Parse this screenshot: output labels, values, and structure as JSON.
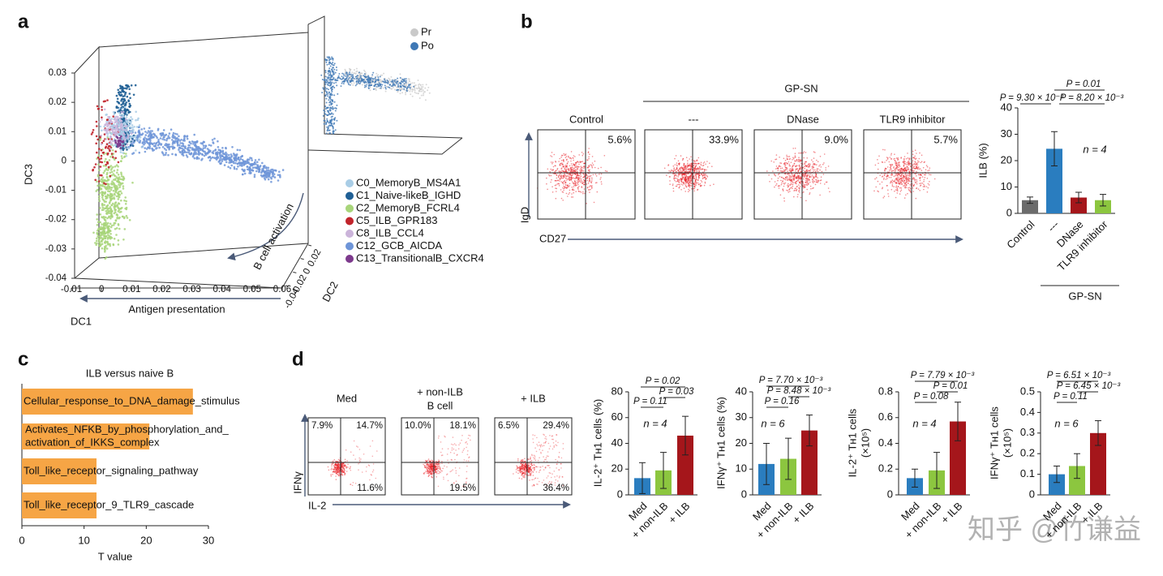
{
  "panel_letters": [
    "a",
    "b",
    "c",
    "d"
  ],
  "watermark": "知乎 @竹谦益",
  "panel_a": {
    "x_label": "DC1",
    "x_caption": "Antigen presentation",
    "y_label": "DC3",
    "z_label": "DC2",
    "arrow_label": "B cell activation",
    "xticks": [
      -0.01,
      0,
      0.01,
      0.02,
      0.03,
      0.04,
      0.05,
      0.06
    ],
    "yticks": [
      -0.04,
      -0.03,
      -0.02,
      -0.01,
      0,
      0.01,
      0.02,
      0.03
    ],
    "zticks": [
      -0.04,
      -0.02,
      0,
      0.02
    ],
    "legend": [
      {
        "name": "C0_MemoryB_MS4A1",
        "color": "#a9cde6"
      },
      {
        "name": "C1_Naive-likeB_IGHD",
        "color": "#1f5f95"
      },
      {
        "name": "C2_MemoryB_FCRL4",
        "color": "#a8d57a"
      },
      {
        "name": "C5_ILB_GPR183",
        "color": "#c1242b"
      },
      {
        "name": "C8_ILB_CCL4",
        "color": "#cbb4da"
      },
      {
        "name": "C12_GCB_AICDA",
        "color": "#6e95d8"
      },
      {
        "name": "C13_TransitionalB_CXCR4",
        "color": "#7d3a8d"
      }
    ],
    "inset_legend": [
      {
        "name": "Pr",
        "color": "#c9c9c9"
      },
      {
        "name": "Po",
        "color": "#3f78b5"
      }
    ]
  },
  "panel_b_flow": {
    "group_label": "GP-SN",
    "x_label": "CD27",
    "y_label": "IgD",
    "plots": [
      {
        "title": "Control",
        "percent": "5.6%"
      },
      {
        "title": "---",
        "percent": "33.9%"
      },
      {
        "title": "DNase",
        "percent": "9.0%"
      },
      {
        "title": "TLR9 inhibitor",
        "percent": "5.7%"
      }
    ]
  },
  "panel_d_flow": {
    "x_label": "IL-2",
    "y_label": "IFNγ",
    "plots": [
      {
        "title": [
          "Med"
        ],
        "percents": [
          "7.9%",
          "14.7%",
          "11.6%"
        ]
      },
      {
        "title": [
          "+ non-ILB",
          "B cell"
        ],
        "percents": [
          "10.0%",
          "18.1%",
          "19.5%"
        ]
      },
      {
        "title": [
          "+ ILB"
        ],
        "percents": [
          "6.5%",
          "29.4%",
          "36.4%"
        ]
      }
    ]
  },
  "chart_data": [
    {
      "type": "bar",
      "ylabel": [
        "ILB (%)"
      ],
      "categories": [
        "Control",
        "---",
        "DNase",
        "TLR9 inhibitor"
      ],
      "values": [
        5,
        24.5,
        6,
        5
      ],
      "errors": [
        1.2,
        6.5,
        2,
        2.2
      ],
      "colors": [
        "#6b6b6b",
        "#2a7dbf",
        "#a5161b",
        "#8cc63f"
      ],
      "ylim": [
        0,
        40
      ],
      "yticks": [
        0,
        10,
        20,
        30,
        40
      ],
      "annotations": [
        "P = 9.30 × 10⁻³",
        "P = 0.01",
        "P = 8.20 × 10⁻³"
      ],
      "n_label": "n = 4",
      "group_label": "GP-SN"
    },
    {
      "type": "barh",
      "title": "ILB versus naive B",
      "xlabel": "T value",
      "categories": [
        "Cellular_response_to_DNA_damage_stimulus",
        [
          "Activates_NFKB_by_phosphorylation_and_",
          "activation_of_IKKS_complex"
        ],
        "Toll_like_receptor_signaling_pathway",
        "Toll_like_receptor_9_TLR9_cascade"
      ],
      "values": [
        27.5,
        20.5,
        12,
        12
      ],
      "color": "#f6a545",
      "xlim": [
        0,
        30
      ],
      "xticks": [
        0,
        10,
        20,
        30
      ]
    },
    {
      "type": "bar",
      "ylabel": [
        "IL-2⁺ Tʜ1 cells (%)"
      ],
      "categories": [
        "Med",
        "+ non-ILB",
        "+ ILB"
      ],
      "values": [
        13,
        19,
        46
      ],
      "errors": [
        12,
        14,
        15
      ],
      "colors": [
        "#2a7dbf",
        "#8cc63f",
        "#a5161b"
      ],
      "ylim": [
        0,
        80
      ],
      "yticks": [
        0,
        20,
        40,
        60,
        80
      ],
      "annotations": [
        "P = 0.02",
        "P = 0.11",
        "P = 0.03"
      ],
      "n_label": "n = 4"
    },
    {
      "type": "bar",
      "ylabel": [
        "IFNγ⁺ Tʜ1 cells (%)"
      ],
      "categories": [
        "Med",
        "+ non-ILB",
        "+ ILB"
      ],
      "values": [
        12,
        14,
        25
      ],
      "errors": [
        8,
        8,
        6
      ],
      "colors": [
        "#2a7dbf",
        "#8cc63f",
        "#a5161b"
      ],
      "ylim": [
        0,
        40
      ],
      "yticks": [
        0,
        10,
        20,
        30,
        40
      ],
      "annotations": [
        "P = 7.70 × 10⁻³",
        "P = 8.48 × 10⁻³",
        "P = 0.16"
      ],
      "n_label": "n = 6"
    },
    {
      "type": "bar",
      "ylabel": [
        "IL-2⁺ Tʜ1 cells",
        "(×10⁵)"
      ],
      "categories": [
        "Med",
        "+ non-ILB",
        "+ ILB"
      ],
      "values": [
        0.13,
        0.19,
        0.57
      ],
      "errors": [
        0.07,
        0.14,
        0.15
      ],
      "colors": [
        "#2a7dbf",
        "#8cc63f",
        "#a5161b"
      ],
      "ylim": [
        0,
        0.8
      ],
      "yticks": [
        0,
        0.2,
        0.4,
        0.6,
        0.8
      ],
      "annotations": [
        "P = 7.79 × 10⁻³",
        "P = 0.01",
        "P = 0.08"
      ],
      "n_label": "n = 4"
    },
    {
      "type": "bar",
      "ylabel": [
        "IFNγ⁺ Tʜ1 cells",
        "(×10⁵)"
      ],
      "categories": [
        "Med",
        "+ non-ILB",
        "+ ILB"
      ],
      "values": [
        0.1,
        0.14,
        0.3
      ],
      "errors": [
        0.04,
        0.06,
        0.06
      ],
      "colors": [
        "#2a7dbf",
        "#8cc63f",
        "#a5161b"
      ],
      "ylim": [
        0,
        0.5
      ],
      "yticks": [
        0,
        0.1,
        0.2,
        0.3,
        0.4,
        0.5
      ],
      "annotations": [
        "P = 6.51 × 10⁻³",
        "P = 6.45 × 10⁻³",
        "P = 0.11"
      ],
      "n_label": "n = 6"
    }
  ]
}
